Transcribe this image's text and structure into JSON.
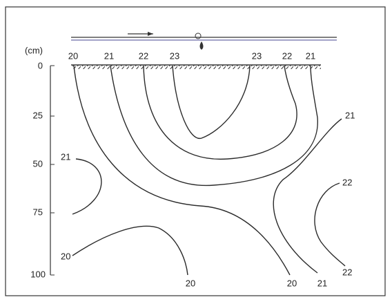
{
  "axis": {
    "unit": "(cm)",
    "ticks": [
      0,
      25,
      50,
      75,
      100
    ]
  },
  "contour_labels": {
    "top": [
      20,
      21,
      22,
      23,
      23,
      22,
      21
    ],
    "right": [
      21,
      22,
      22
    ],
    "left": [
      21,
      20
    ],
    "bottom": [
      20,
      20,
      21
    ]
  }
}
